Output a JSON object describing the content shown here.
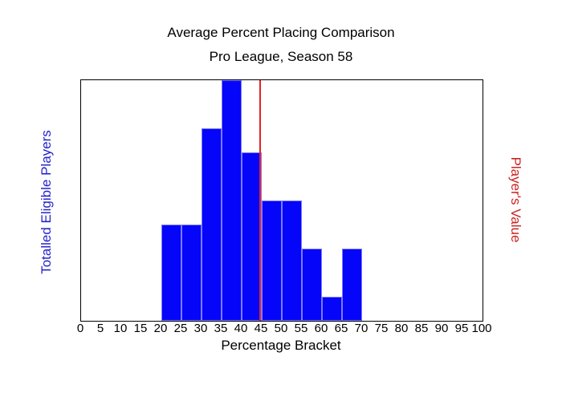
{
  "chart_data": {
    "type": "bar",
    "title": "Average Percent Placing Comparison",
    "subtitle": "Pro League, Season 58",
    "xlabel": "Percentage Bracket",
    "ylabel_left": "Totalled Eligible Players",
    "ylabel_right": "Player's Value",
    "xlim": [
      0,
      100
    ],
    "ylim": [
      0,
      10
    ],
    "x_ticks": [
      0,
      5,
      10,
      15,
      20,
      25,
      30,
      35,
      40,
      45,
      50,
      55,
      60,
      65,
      70,
      75,
      80,
      85,
      90,
      95,
      100
    ],
    "bin_width": 5,
    "bins": [
      {
        "start": 20,
        "end": 25,
        "count": 4
      },
      {
        "start": 25,
        "end": 30,
        "count": 4
      },
      {
        "start": 30,
        "end": 35,
        "count": 8
      },
      {
        "start": 35,
        "end": 40,
        "count": 10
      },
      {
        "start": 40,
        "end": 45,
        "count": 7
      },
      {
        "start": 45,
        "end": 50,
        "count": 5
      },
      {
        "start": 50,
        "end": 55,
        "count": 5
      },
      {
        "start": 55,
        "end": 60,
        "count": 3
      },
      {
        "start": 60,
        "end": 65,
        "count": 1
      },
      {
        "start": 65,
        "end": 70,
        "count": 3
      }
    ],
    "marker_value": 44.6,
    "grid": false,
    "legend": "none",
    "colors": {
      "bar_fill": "#0505fa",
      "bar_border": "#7b7bff",
      "marker_line": "#e62222",
      "left_label": "#2222cc",
      "right_label": "#cc2222",
      "axis_text": "#000000",
      "plot_border": "#000000",
      "background": "#ffffff"
    }
  }
}
